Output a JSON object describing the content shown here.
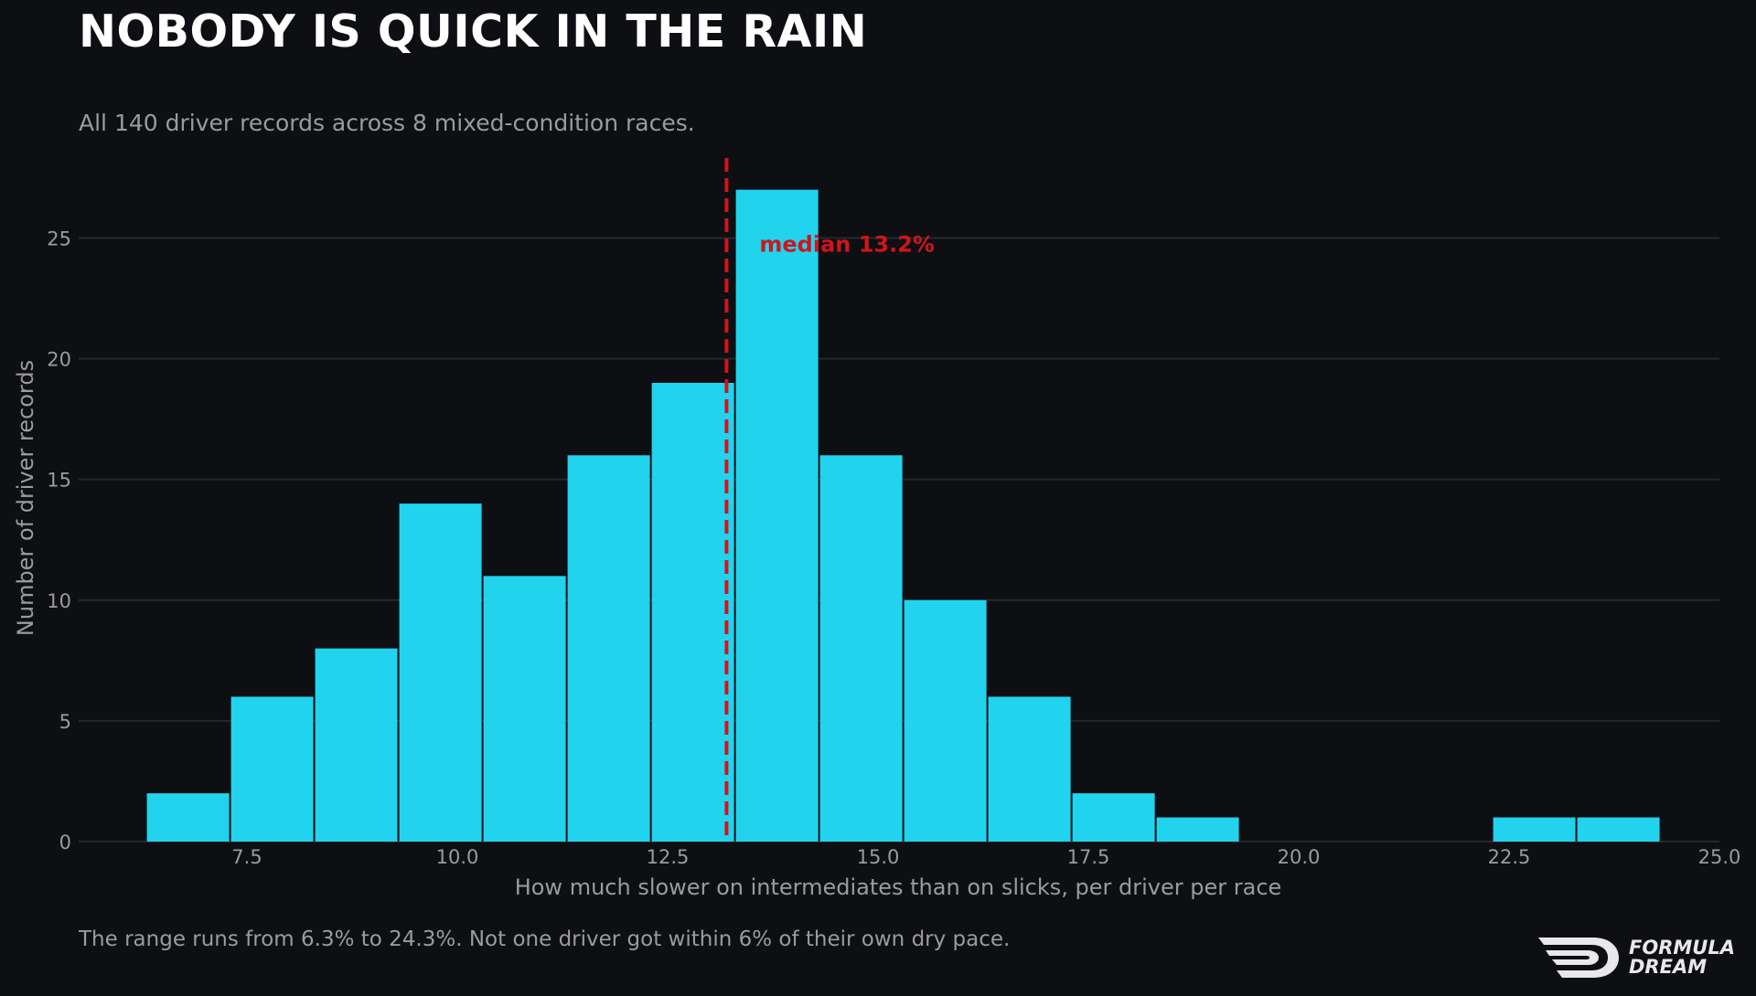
{
  "header": {
    "title": "NOBODY IS QUICK IN THE RAIN",
    "subtitle": "All 140 driver records across 8 mixed-condition races."
  },
  "footer": {
    "note": "The range runs from 6.3% to 24.3%. Not one driver got within 6% of their own dry pace."
  },
  "logo": {
    "line1": "FORMULA",
    "line2": "DREAM"
  },
  "colors": {
    "background": "#0e0f13",
    "bar": "#22d3ee",
    "median": "#d0151b",
    "grid": "#26282d",
    "muted_text": "#9a9b9f"
  },
  "chart_data": {
    "type": "bar",
    "title": "NOBODY IS QUICK IN THE RAIN",
    "subtitle": "All 140 driver records across 8 mixed-condition races.",
    "xlabel": "How much slower on intermediates than on slicks, per driver per race",
    "ylabel": "Number of driver records",
    "xlim": [
      5.5,
      25.0
    ],
    "ylim": [
      0,
      28.5
    ],
    "x_ticks": [
      7.5,
      10.0,
      12.5,
      15.0,
      17.5,
      20.0,
      22.5,
      25.0
    ],
    "x_tick_labels": [
      "7.5",
      "10.0",
      "12.5",
      "15.0",
      "17.5",
      "20.0",
      "22.5",
      "25.0"
    ],
    "y_ticks": [
      0,
      5,
      10,
      15,
      20,
      25
    ],
    "y_tick_labels": [
      "0",
      "5",
      "10",
      "15",
      "20",
      "25"
    ],
    "grid": "horizontal",
    "bins": [
      {
        "x0": 6.3,
        "x1": 7.3,
        "count": 2
      },
      {
        "x0": 7.3,
        "x1": 8.3,
        "count": 6
      },
      {
        "x0": 8.3,
        "x1": 9.3,
        "count": 8
      },
      {
        "x0": 9.3,
        "x1": 10.3,
        "count": 14
      },
      {
        "x0": 10.3,
        "x1": 11.3,
        "count": 11
      },
      {
        "x0": 11.3,
        "x1": 12.3,
        "count": 16
      },
      {
        "x0": 12.3,
        "x1": 13.3,
        "count": 19
      },
      {
        "x0": 13.3,
        "x1": 14.3,
        "count": 27
      },
      {
        "x0": 14.3,
        "x1": 15.3,
        "count": 16
      },
      {
        "x0": 15.3,
        "x1": 16.3,
        "count": 10
      },
      {
        "x0": 16.3,
        "x1": 17.3,
        "count": 6
      },
      {
        "x0": 17.3,
        "x1": 18.3,
        "count": 2
      },
      {
        "x0": 18.3,
        "x1": 19.3,
        "count": 1
      },
      {
        "x0": 19.3,
        "x1": 20.3,
        "count": 0
      },
      {
        "x0": 20.3,
        "x1": 21.3,
        "count": 0
      },
      {
        "x0": 21.3,
        "x1": 22.3,
        "count": 0
      },
      {
        "x0": 22.3,
        "x1": 23.3,
        "count": 1
      },
      {
        "x0": 23.3,
        "x1": 24.3,
        "count": 1
      }
    ],
    "median": {
      "value": 13.2,
      "label": "median 13.2%"
    },
    "range": [
      6.3,
      24.3
    ]
  }
}
